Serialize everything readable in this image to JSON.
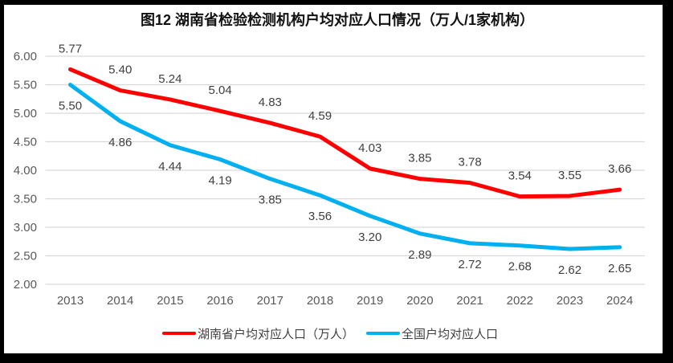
{
  "chart_data": {
    "type": "line",
    "title": "图12 湖南省检验检测机构户均对应人口情况（万人/1家机构）",
    "categories": [
      "2013",
      "2014",
      "2015",
      "2016",
      "2017",
      "2018",
      "2019",
      "2020",
      "2021",
      "2022",
      "2023",
      "2024"
    ],
    "series": [
      {
        "name": "湖南省户均对应人口（万人）",
        "color": "#FF0000",
        "values": [
          5.77,
          5.4,
          5.24,
          5.04,
          4.83,
          4.59,
          4.03,
          3.85,
          3.78,
          3.54,
          3.55,
          3.66
        ],
        "labels": [
          "5.77",
          "5.40",
          "5.24",
          "5.04",
          "4.83",
          "4.59",
          "4.03",
          "3.85",
          "3.78",
          "3.54",
          "3.55",
          "3.66"
        ],
        "label_position": "above"
      },
      {
        "name": "全国户均对应人口",
        "color": "#00B0F0",
        "values": [
          5.5,
          4.86,
          4.44,
          4.19,
          3.85,
          3.56,
          3.2,
          2.89,
          2.72,
          2.68,
          2.62,
          2.65
        ],
        "labels": [
          "5.50",
          "4.86",
          "4.44",
          "4.19",
          "3.85",
          "3.56",
          "3.20",
          "2.89",
          "2.72",
          "2.68",
          "2.62",
          "2.65"
        ],
        "label_position": "below"
      }
    ],
    "xlabel": "",
    "ylabel": "",
    "ylim": [
      2.0,
      6.0
    ],
    "ytick_step": 0.5,
    "ytick_labels": [
      "6.00",
      "5.50",
      "5.00",
      "4.50",
      "4.00",
      "3.50",
      "3.00",
      "2.50",
      "2.00"
    ],
    "grid": true,
    "legend_position": "bottom",
    "colors": {
      "gridline": "#D9D9D9",
      "axis_text": "#595959",
      "data_label_text": "#404040",
      "frame_border": "#000000",
      "background": "#FFFFFF"
    }
  }
}
